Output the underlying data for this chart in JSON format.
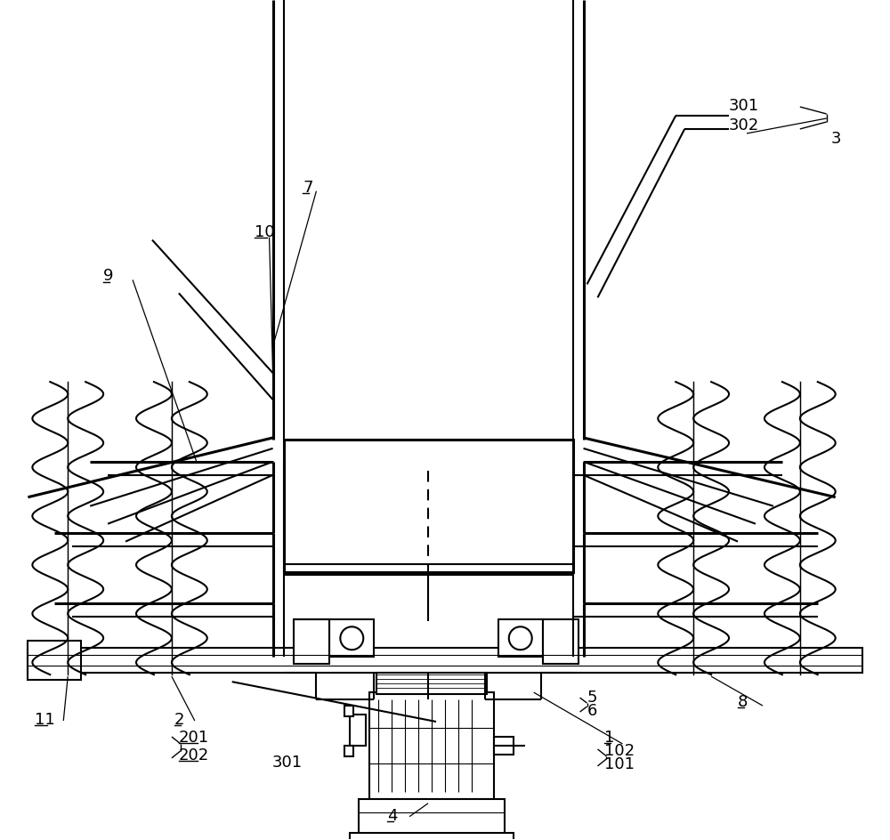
{
  "bg_color": "#ffffff",
  "lc": "#000000",
  "lw": 1.5,
  "tlw": 2.2,
  "fig_w": 10.0,
  "fig_h": 9.45
}
